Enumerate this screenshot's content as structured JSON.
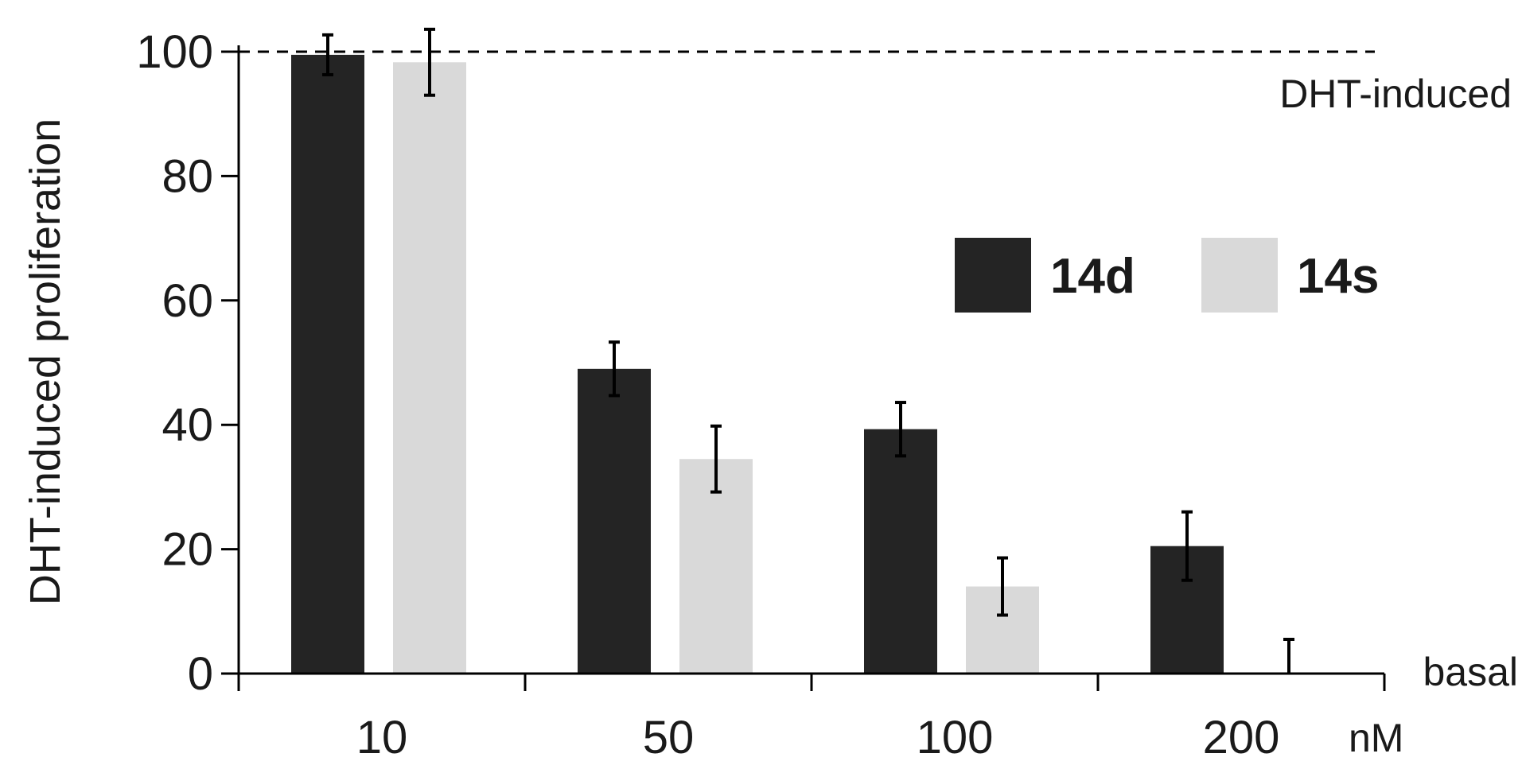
{
  "chart_data": {
    "type": "bar",
    "categories": [
      "10",
      "50",
      "100",
      "200"
    ],
    "x_unit": "nM",
    "ylabel": "DHT-induced proliferation",
    "xlabel": "",
    "ylim": [
      0,
      100
    ],
    "yticks": [
      0,
      20,
      40,
      60,
      80,
      100
    ],
    "grid": false,
    "legend_position": "right",
    "series": [
      {
        "name": "14d",
        "color": "#242424",
        "values": [
          99.5,
          49,
          39.3,
          20.5
        ],
        "errors": [
          3.2,
          4.3,
          4.3,
          5.5
        ]
      },
      {
        "name": "14s",
        "color": "#d9d9d9",
        "values": [
          98.3,
          34.5,
          14,
          0
        ],
        "errors": [
          5.3,
          5.3,
          4.6,
          5.5
        ]
      }
    ],
    "reference_lines": [
      {
        "y": 100,
        "label": "DHT-induced",
        "style": "dashed"
      },
      {
        "y": 0,
        "label": "basal",
        "style": "axis"
      }
    ]
  }
}
